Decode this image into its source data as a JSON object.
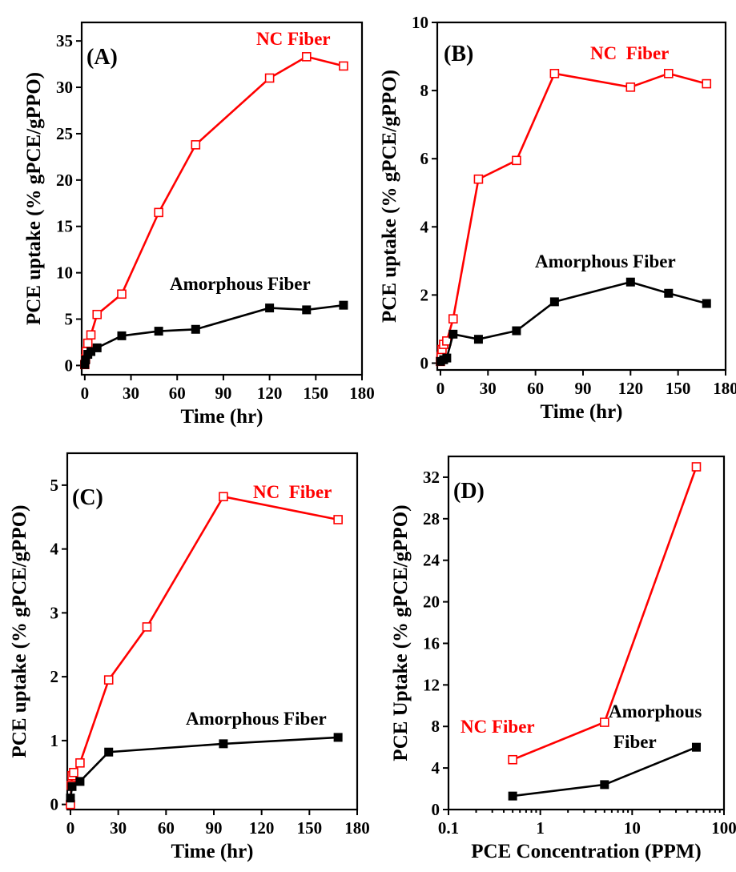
{
  "chart_data": [
    {
      "type": "line",
      "panel_label": "(A)",
      "xlabel": "Time (hr)",
      "ylabel": "PCE uptake (% gPCE/gPPO)",
      "xlim": [
        -2,
        180
      ],
      "ylim": [
        -1,
        37
      ],
      "xticks": [
        0,
        30,
        60,
        90,
        120,
        150,
        180
      ],
      "yticks": [
        0,
        5,
        10,
        15,
        20,
        25,
        30,
        35
      ],
      "series": [
        {
          "name": "NC Fiber",
          "color": "#ff0000",
          "marker": "open-square",
          "x": [
            0,
            0.5,
            1,
            2,
            4,
            8,
            24,
            48,
            72,
            120,
            144,
            168
          ],
          "y": [
            0.1,
            0.7,
            1.5,
            2.4,
            3.3,
            5.5,
            7.7,
            16.5,
            23.8,
            31.0,
            33.3,
            32.3
          ],
          "label_text": "NC Fiber"
        },
        {
          "name": "Amorphous Fiber",
          "color": "#000000",
          "marker": "filled-square",
          "x": [
            0,
            0.5,
            2,
            4,
            8,
            24,
            48,
            72,
            120,
            144,
            168
          ],
          "y": [
            0.1,
            0.6,
            1.2,
            1.5,
            1.9,
            3.2,
            3.7,
            3.9,
            6.2,
            6.0,
            6.5
          ],
          "label_text": "Amorphous Fiber"
        }
      ]
    },
    {
      "type": "line",
      "panel_label": "(B)",
      "xlabel": "Time (hr)",
      "ylabel": "PCE uptake (% gPCE/gPPO)",
      "xlim": [
        -2,
        180
      ],
      "ylim": [
        -0.2,
        10
      ],
      "xticks": [
        0,
        30,
        60,
        90,
        120,
        150,
        180
      ],
      "yticks": [
        0,
        2,
        4,
        6,
        8,
        10
      ],
      "series": [
        {
          "name": "NC Fiber",
          "color": "#ff0000",
          "marker": "open-square",
          "x": [
            0,
            0.5,
            1,
            2,
            4,
            8,
            24,
            48,
            72,
            120,
            144,
            168
          ],
          "y": [
            0.05,
            0.2,
            0.4,
            0.55,
            0.65,
            1.3,
            5.4,
            5.95,
            8.5,
            8.1,
            8.5,
            8.2
          ],
          "label_text": "NC  Fiber"
        },
        {
          "name": "Amorphous Fiber",
          "color": "#000000",
          "marker": "filled-square",
          "x": [
            0,
            2,
            4,
            8,
            24,
            48,
            72,
            120,
            144,
            168
          ],
          "y": [
            0.05,
            0.1,
            0.15,
            0.85,
            0.7,
            0.95,
            1.8,
            2.38,
            2.05,
            1.75
          ],
          "label_text": "Amorphous Fiber"
        }
      ]
    },
    {
      "type": "line",
      "panel_label": "(C)",
      "xlabel": "Time (hr)",
      "ylabel": "PCE uptake (% gPCE/gPPO)",
      "xlim": [
        -2,
        180
      ],
      "ylim": [
        -0.08,
        5.5
      ],
      "xticks": [
        0,
        30,
        60,
        90,
        120,
        150,
        180
      ],
      "yticks": [
        0,
        1,
        2,
        3,
        4,
        5
      ],
      "series": [
        {
          "name": "NC Fiber",
          "color": "#ff0000",
          "marker": "open-square",
          "x": [
            0,
            0.5,
            1,
            2,
            6,
            24,
            48,
            96,
            168
          ],
          "y": [
            0.0,
            0.3,
            0.45,
            0.5,
            0.65,
            1.95,
            2.78,
            4.82,
            4.46
          ],
          "label_text": "NC  Fiber"
        },
        {
          "name": "Amorphous Fiber",
          "color": "#000000",
          "marker": "filled-square",
          "x": [
            0,
            1,
            6,
            24,
            96,
            168
          ],
          "y": [
            0.1,
            0.28,
            0.36,
            0.82,
            0.95,
            1.05
          ],
          "label_text": "Amorphous Fiber"
        }
      ]
    },
    {
      "type": "line",
      "panel_label": "(D)",
      "xlabel": "PCE Concentration (PPM)",
      "ylabel": "PCE Uptake (% gPCE/gPPO)",
      "xscale": "log",
      "xlim": [
        0.1,
        100
      ],
      "ylim": [
        0,
        34
      ],
      "xticks": [
        0.1,
        1,
        10,
        100
      ],
      "xtick_labels": [
        "0.1",
        "1",
        "10",
        "100"
      ],
      "yticks": [
        0,
        4,
        8,
        12,
        16,
        20,
        24,
        28,
        32
      ],
      "series": [
        {
          "name": "NC Fiber",
          "color": "#ff0000",
          "marker": "open-square",
          "x": [
            0.5,
            5,
            50
          ],
          "y": [
            4.8,
            8.4,
            33.0
          ],
          "label_text": "NC Fiber"
        },
        {
          "name": "Amorphous Fiber",
          "color": "#000000",
          "marker": "filled-square",
          "x": [
            0.5,
            5,
            50
          ],
          "y": [
            1.3,
            2.4,
            6.0
          ],
          "label_text": [
            "Amorphous",
            "Fiber"
          ]
        }
      ]
    }
  ]
}
